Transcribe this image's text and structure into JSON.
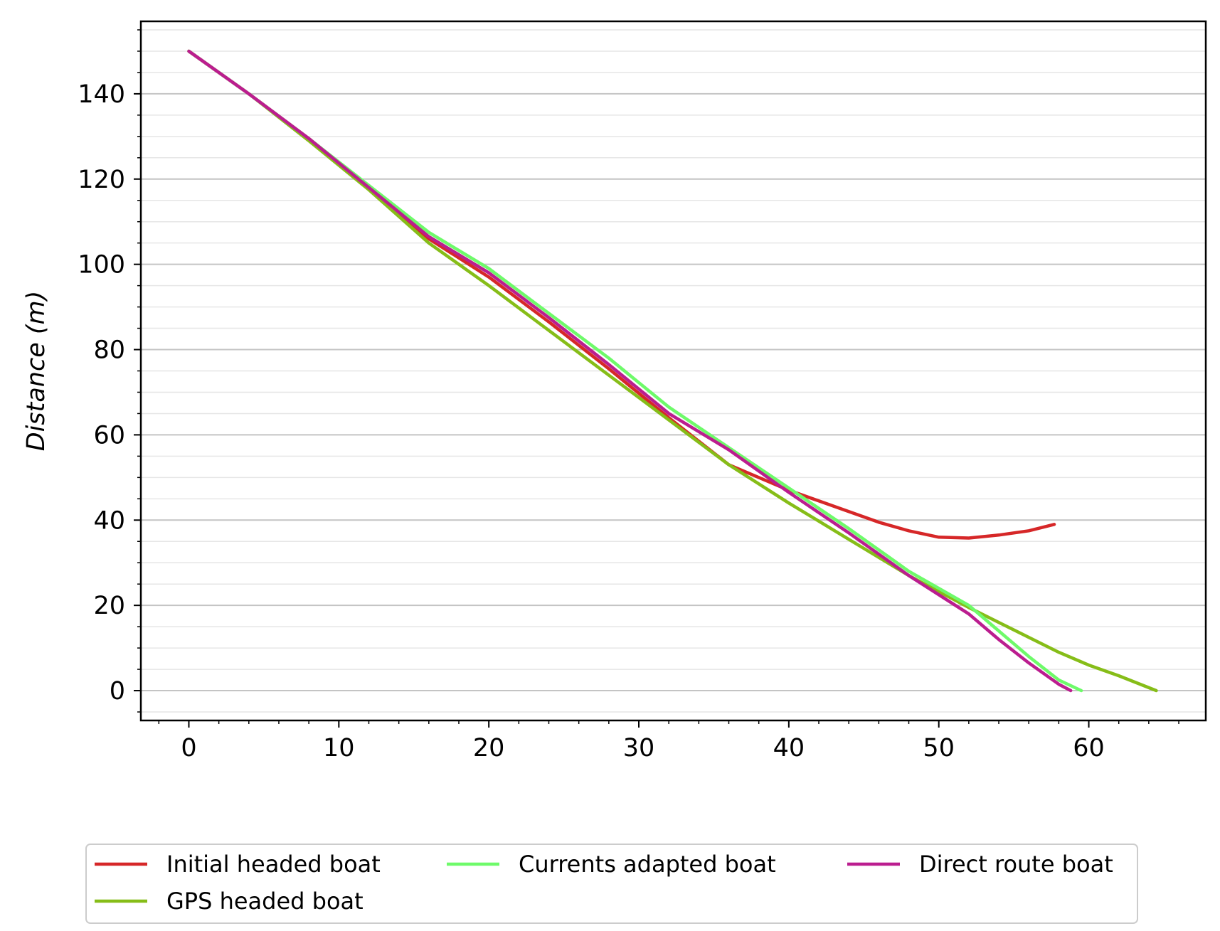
{
  "chart_data": {
    "type": "line",
    "title": "",
    "xlabel": "",
    "ylabel": "Distance (m)",
    "xlim": [
      -3.2,
      67.8
    ],
    "ylim": [
      -7,
      157
    ],
    "xticks": [
      0,
      10,
      20,
      30,
      40,
      50,
      60
    ],
    "yticks": [
      0,
      20,
      40,
      60,
      80,
      100,
      120,
      140
    ],
    "grid": {
      "y_major": true,
      "y_minor": true,
      "x": false
    },
    "legend": {
      "position": "bottom-center",
      "columns": 3
    },
    "series": [
      {
        "name": "Initial headed boat",
        "color": "#d62728",
        "x": [
          0,
          4,
          8,
          12,
          16,
          20,
          24,
          28,
          32,
          36,
          40,
          42,
          44,
          46,
          48,
          50,
          52,
          54,
          56,
          57.7
        ],
        "y": [
          150,
          140,
          129.5,
          118,
          106,
          97,
          86.5,
          75.5,
          64,
          53,
          47,
          44.5,
          42,
          39.5,
          37.5,
          36,
          35.8,
          36.5,
          37.5,
          39
        ]
      },
      {
        "name": "GPS headed boat",
        "color": "#86bd18",
        "x": [
          0,
          4,
          8,
          12,
          16,
          20,
          24,
          28,
          32,
          36,
          40,
          44,
          48,
          52,
          54,
          56,
          58,
          60,
          62,
          64.5
        ],
        "y": [
          150,
          140,
          129,
          117.5,
          105,
          95,
          84.5,
          74,
          63.5,
          53,
          44,
          35.5,
          27,
          19.5,
          16,
          12.5,
          9,
          6,
          3.5,
          0
        ]
      },
      {
        "name": "Currents adapted boat",
        "color": "#6efa6a",
        "x": [
          0,
          4,
          8,
          12,
          16,
          20,
          24,
          28,
          32,
          36,
          40,
          44,
          46,
          48,
          50,
          52,
          54,
          56,
          58,
          59.5
        ],
        "y": [
          150,
          140,
          129.5,
          118.5,
          107.5,
          99,
          88.5,
          78,
          66.5,
          57,
          47.5,
          38,
          33,
          28,
          24,
          20,
          14,
          8,
          2.5,
          0
        ]
      },
      {
        "name": "Direct route boat",
        "color": "#bb1d8f",
        "x": [
          0,
          4,
          8,
          12,
          16,
          20,
          24,
          28,
          32,
          36,
          40,
          44,
          46,
          48,
          50,
          52,
          54,
          56,
          58,
          58.8
        ],
        "y": [
          150,
          140,
          129.5,
          118,
          106.5,
          98,
          87.5,
          76.5,
          65,
          56.5,
          46.5,
          37,
          32,
          27,
          22.5,
          18,
          12,
          6.5,
          1.5,
          0
        ]
      }
    ]
  }
}
